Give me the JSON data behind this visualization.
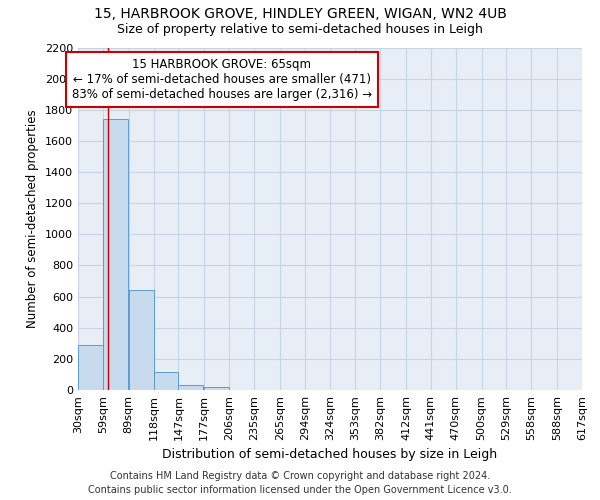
{
  "title1": "15, HARBROOK GROVE, HINDLEY GREEN, WIGAN, WN2 4UB",
  "title2": "Size of property relative to semi-detached houses in Leigh",
  "xlabel": "Distribution of semi-detached houses by size in Leigh",
  "ylabel": "Number of semi-detached properties",
  "footer1": "Contains HM Land Registry data © Crown copyright and database right 2024.",
  "footer2": "Contains public sector information licensed under the Open Government Licence v3.0.",
  "annotation_line1": "15 HARBROOK GROVE: 65sqm",
  "annotation_line2": "← 17% of semi-detached houses are smaller (471)",
  "annotation_line3": "83% of semi-detached houses are larger (2,316) →",
  "bar_left_edges": [
    30,
    59,
    89,
    118,
    147,
    177,
    206,
    235,
    265,
    294,
    324,
    353,
    382,
    412,
    441,
    470,
    500,
    529,
    558,
    588
  ],
  "bar_heights": [
    290,
    1740,
    640,
    115,
    30,
    20,
    0,
    0,
    0,
    0,
    0,
    0,
    0,
    0,
    0,
    0,
    0,
    0,
    0,
    0
  ],
  "bin_width": 29,
  "xtick_labels": [
    "30sqm",
    "59sqm",
    "89sqm",
    "118sqm",
    "147sqm",
    "177sqm",
    "206sqm",
    "235sqm",
    "265sqm",
    "294sqm",
    "324sqm",
    "353sqm",
    "382sqm",
    "412sqm",
    "441sqm",
    "470sqm",
    "500sqm",
    "529sqm",
    "558sqm",
    "588sqm",
    "617sqm"
  ],
  "ylim": [
    0,
    2200
  ],
  "yticks": [
    0,
    200,
    400,
    600,
    800,
    1000,
    1200,
    1400,
    1600,
    1800,
    2000,
    2200
  ],
  "bar_color": "#c8daee",
  "bar_edge_color": "#5b9bd5",
  "vline_color": "#cc0000",
  "vline_x": 65,
  "grid_color": "#c8d4e3",
  "bg_color": "#e8eef6",
  "annotation_box_color": "#cc0000",
  "title_fontsize": 10,
  "subtitle_fontsize": 9,
  "axis_label_fontsize": 9,
  "ylabel_fontsize": 8.5,
  "tick_fontsize": 8,
  "annotation_fontsize": 8.5,
  "footer_fontsize": 7
}
